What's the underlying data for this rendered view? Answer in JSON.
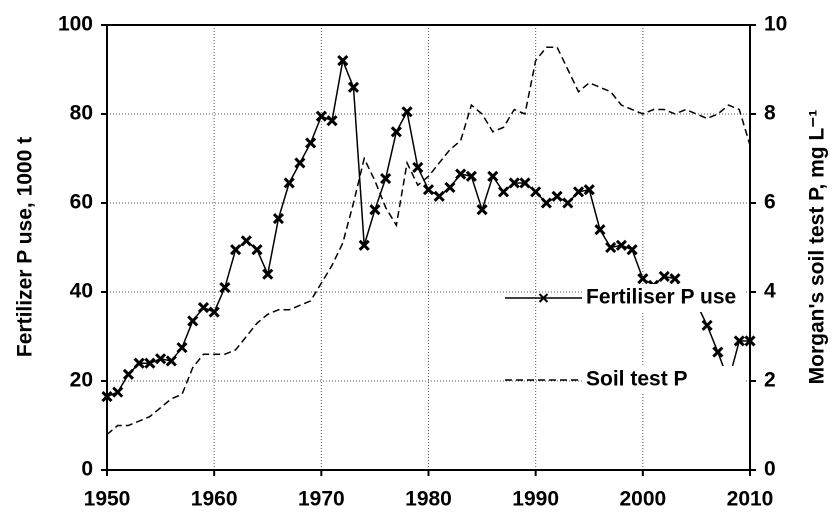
{
  "chart_data": {
    "type": "line",
    "ylabel": "Fertilizer P use, 1000 t",
    "y2label": "Morgan's soil test P, mg L⁻¹",
    "x": [
      1950,
      1951,
      1952,
      1953,
      1954,
      1955,
      1956,
      1957,
      1958,
      1959,
      1960,
      1961,
      1962,
      1963,
      1964,
      1965,
      1966,
      1967,
      1968,
      1969,
      1970,
      1971,
      1972,
      1973,
      1974,
      1975,
      1976,
      1977,
      1978,
      1979,
      1980,
      1981,
      1982,
      1983,
      1984,
      1985,
      1986,
      1987,
      1988,
      1989,
      1990,
      1991,
      1992,
      1993,
      1994,
      1995,
      1996,
      1997,
      1998,
      1999,
      2000,
      2001,
      2002,
      2003,
      2004,
      2005,
      2006,
      2007,
      2008,
      2009,
      2010
    ],
    "series": [
      {
        "name": "Fertiliser P use",
        "color": "#000000",
        "marker": "x",
        "linestyle": "solid",
        "axis": "y",
        "values": [
          16.5,
          17.5,
          21.5,
          24,
          24,
          25,
          24.5,
          27.5,
          33.5,
          36.5,
          35.5,
          41,
          49.5,
          51.5,
          49.5,
          44,
          56.5,
          64.5,
          69,
          73.5,
          79.5,
          78.5,
          92,
          86,
          50.5,
          58.5,
          65.5,
          76,
          80.5,
          68,
          63,
          61.5,
          63.5,
          66.5,
          66,
          58.5,
          66,
          62.5,
          64.5,
          64.5,
          62.5,
          60,
          61.5,
          60,
          62.5,
          63,
          54,
          50,
          50.5,
          49.5,
          43,
          41.5,
          43.5,
          43,
          39,
          37.5,
          32.5,
          26.5,
          20,
          29,
          29
        ]
      },
      {
        "name": "Soil test P",
        "color": "#000000",
        "marker": "none",
        "linestyle": "dashed",
        "axis": "y2",
        "values": [
          0.8,
          1.0,
          1.0,
          1.1,
          1.2,
          1.4,
          1.6,
          1.7,
          2.3,
          2.6,
          2.6,
          2.6,
          2.7,
          3.0,
          3.3,
          3.5,
          3.6,
          3.6,
          3.7,
          3.8,
          4.2,
          4.6,
          5.1,
          6.0,
          7.0,
          6.5,
          5.9,
          5.5,
          6.9,
          6.4,
          6.6,
          6.9,
          7.2,
          7.4,
          8.2,
          8.0,
          7.6,
          7.7,
          8.1,
          8.0,
          9.2,
          9.5,
          9.5,
          9.0,
          8.5,
          8.7,
          8.6,
          8.5,
          8.2,
          8.1,
          8.0,
          8.1,
          8.1,
          8.0,
          8.1,
          8.0,
          7.9,
          8.0,
          8.2,
          8.1,
          7.3
        ]
      }
    ],
    "xlim": [
      1950,
      2010
    ],
    "xticks": [
      1950,
      1960,
      1970,
      1980,
      1990,
      2000,
      2010
    ],
    "ylim": [
      0,
      100
    ],
    "yticks": [
      0,
      20,
      40,
      60,
      80,
      100
    ],
    "y2lim": [
      0,
      10
    ],
    "y2ticks": [
      0,
      2,
      4,
      6,
      8,
      10
    ],
    "grid": true
  }
}
